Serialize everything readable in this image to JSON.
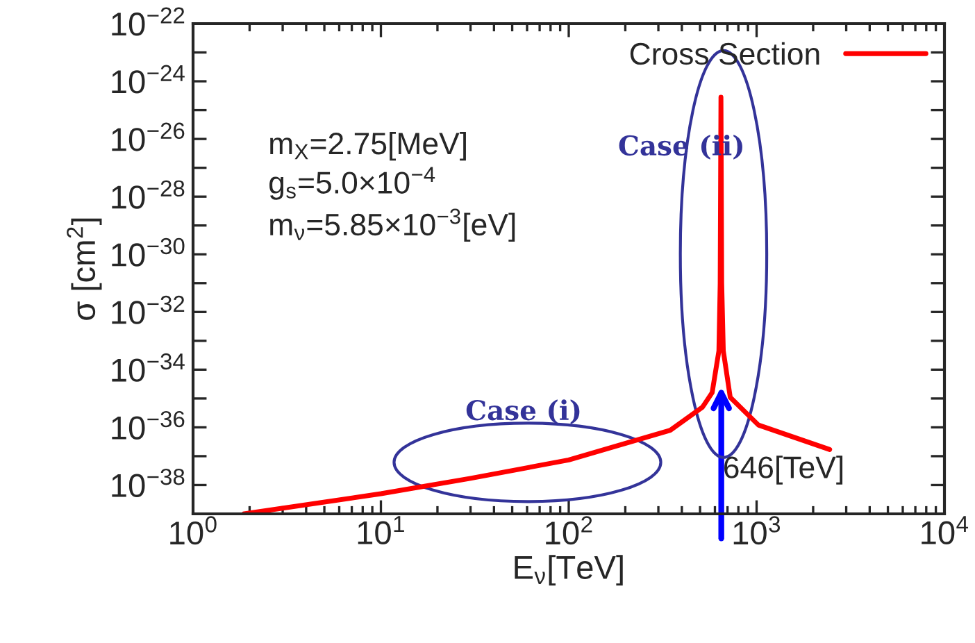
{
  "chart_data": {
    "type": "line",
    "xlabel": "E$_{ν}$[TeV]",
    "ylabel": "σ [cm$^{2}$]",
    "log": "xy",
    "grid": false,
    "legend": "top right",
    "xlim": [
      1,
      10000
    ],
    "ylim": [
      1e-39,
      1e-22
    ],
    "xticks": [
      {
        "value": 1,
        "label": "10$^{0}$"
      },
      {
        "value": 10,
        "label": "10$^{1}$"
      },
      {
        "value": 100,
        "label": "10$^{2}$"
      },
      {
        "value": 1000,
        "label": "10$^{3}$"
      },
      {
        "value": 10000,
        "label": "10$^{4}$"
      }
    ],
    "yticks": [
      {
        "value": 1e-38,
        "label": "10$^{−38}$"
      },
      {
        "value": 1e-37,
        "label": null
      },
      {
        "value": 1e-36,
        "label": "10$^{−36}$"
      },
      {
        "value": 1e-35,
        "label": null
      },
      {
        "value": 1e-34,
        "label": "10$^{−34}$"
      },
      {
        "value": 1e-33,
        "label": null
      },
      {
        "value": 1e-32,
        "label": "10$^{−32}$"
      },
      {
        "value": 1e-31,
        "label": null
      },
      {
        "value": 1e-30,
        "label": "10$^{−30}$"
      },
      {
        "value": 1e-29,
        "label": null
      },
      {
        "value": 1e-28,
        "label": "10$^{−28}$"
      },
      {
        "value": 1e-27,
        "label": null
      },
      {
        "value": 1e-26,
        "label": "10$^{−26}$"
      },
      {
        "value": 1e-25,
        "label": null
      },
      {
        "value": 1e-24,
        "label": "10$^{−24}$"
      },
      {
        "value": 1e-23,
        "label": null
      },
      {
        "value": 1e-22,
        "label": "10$^{−22}$"
      }
    ],
    "series": [
      {
        "name": "Cross Section",
        "color": "#ff0000",
        "x": [
          1.87,
          10,
          30,
          100,
          347,
          515,
          580,
          630,
          640,
          646,
          652,
          665,
          724,
          1023,
          2450
        ],
        "values": [
          1e-39,
          5e-39,
          1.7e-38,
          7.4e-38,
          7.9e-37,
          5e-36,
          1.6e-35,
          4.5e-34,
          1e-31,
          2.8e-25,
          1e-31,
          4.5e-34,
          1.1e-35,
          1.2e-36,
          1.7e-37
        ]
      }
    ],
    "annotations": [
      "m$_{X}$=2.75[MeV]",
      "g$_{s}$=5.0×10$^{−4}$",
      "m$_{ν}$=5.85×10$^{−3}$[eV]",
      "Case (i)",
      "Case (ii)",
      "646[TeV]"
    ]
  }
}
